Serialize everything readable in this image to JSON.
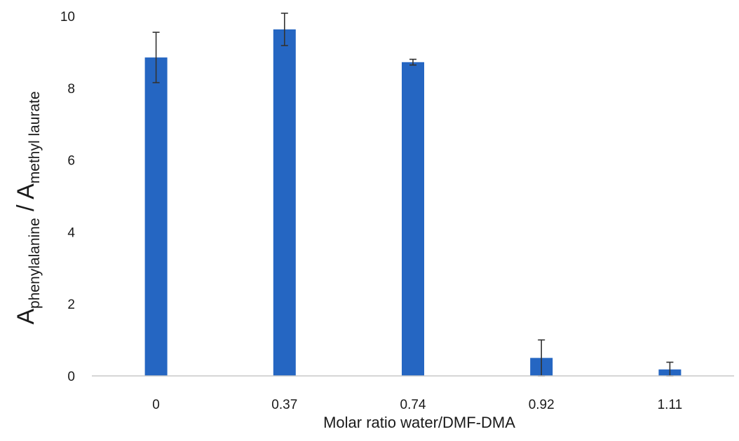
{
  "chart_data": {
    "type": "bar",
    "categories": [
      "0",
      "0.37",
      "0.74",
      "0.92",
      "1.11"
    ],
    "values": [
      8.85,
      9.63,
      8.72,
      0.5,
      0.18
    ],
    "error": [
      0.7,
      0.45,
      0.08,
      0.5,
      0.2
    ],
    "bar_color": "#2566c2",
    "error_color": "#333333",
    "ylim": [
      0,
      10
    ],
    "yticks": [
      0,
      2,
      4,
      6,
      8,
      10
    ],
    "xlabel": "Molar ratio water/DMF-DMA",
    "ylabel": {
      "a1": "A",
      "sub1": "phenylalanine",
      "slash": " / ",
      "a2": "A",
      "sub2": "methyl laurate"
    },
    "grid": false
  }
}
